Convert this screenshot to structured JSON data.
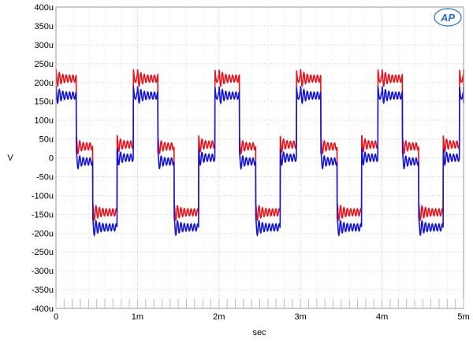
{
  "chart_data": {
    "type": "line",
    "title": "",
    "xlabel": "sec",
    "ylabel": "V",
    "xlim": [
      0,
      0.005
    ],
    "ylim": [
      -400,
      400
    ],
    "y_unit": "u",
    "grid": true,
    "x_ticks": [
      {
        "value": 0,
        "label": "0"
      },
      {
        "value": 0.001,
        "label": "1m"
      },
      {
        "value": 0.002,
        "label": "2m"
      },
      {
        "value": 0.003,
        "label": "3m"
      },
      {
        "value": 0.004,
        "label": "4m"
      },
      {
        "value": 0.005,
        "label": "5m"
      }
    ],
    "y_ticks": [
      {
        "value": 400,
        "label": "400u"
      },
      {
        "value": 350,
        "label": "350u"
      },
      {
        "value": 300,
        "label": "300u"
      },
      {
        "value": 250,
        "label": "250u"
      },
      {
        "value": 200,
        "label": "200u"
      },
      {
        "value": 150,
        "label": "150u"
      },
      {
        "value": 100,
        "label": "100u"
      },
      {
        "value": 50,
        "label": "50u"
      },
      {
        "value": 0,
        "label": "0"
      },
      {
        "value": -50,
        "label": "-50u"
      },
      {
        "value": -100,
        "label": "-100u"
      },
      {
        "value": -150,
        "label": "-150u"
      },
      {
        "value": -200,
        "label": "-200u"
      },
      {
        "value": -250,
        "label": "-250u"
      },
      {
        "value": -300,
        "label": "-300u"
      },
      {
        "value": -350,
        "label": "-350u"
      },
      {
        "value": -400,
        "label": "-400u"
      }
    ],
    "logo_text": "AP",
    "series": [
      {
        "color": "#e8131a",
        "period": 0.001,
        "x_start": 0,
        "x_end": 0.00505,
        "segments": [
          {
            "x0": 0.0,
            "x1": 0.00025,
            "level": 210
          },
          {
            "x0": 0.00025,
            "x1": 0.00045,
            "level": 30
          },
          {
            "x0": 0.00045,
            "x1": 0.00075,
            "level": -145
          },
          {
            "x0": 0.00075,
            "x1": 0.00095,
            "level": 35
          },
          {
            "x0": 0.00095,
            "x1": 0.001,
            "level": 210
          }
        ],
        "ripple_amplitude": 10,
        "overshoot": 25
      },
      {
        "color": "#1414d6",
        "period": 0.001,
        "x_start": 0,
        "x_end": 0.00505,
        "segments": [
          {
            "x0": 0.0,
            "x1": 0.00025,
            "level": 165
          },
          {
            "x0": 0.00025,
            "x1": 0.00045,
            "level": -10
          },
          {
            "x0": 0.00045,
            "x1": 0.00075,
            "level": -185
          },
          {
            "x0": 0.00075,
            "x1": 0.00095,
            "level": 0
          },
          {
            "x0": 0.00095,
            "x1": 0.001,
            "level": 165
          }
        ],
        "ripple_amplitude": 10,
        "overshoot": 25
      }
    ]
  }
}
